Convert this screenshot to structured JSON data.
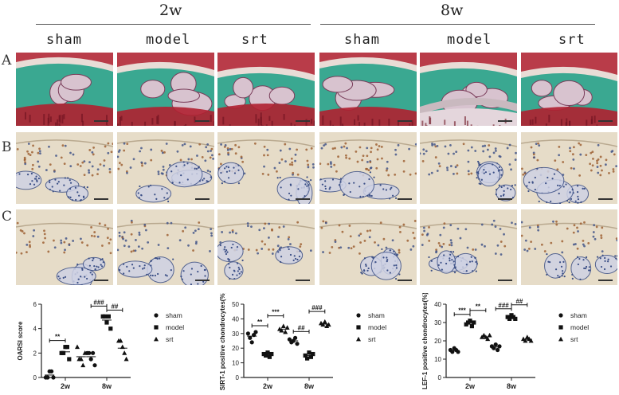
{
  "header": {
    "time_2w": "2w",
    "time_8w": "8w"
  },
  "groups": [
    "sham",
    "model",
    "srt",
    "sham",
    "model",
    "srt"
  ],
  "row_labels": [
    "A",
    "B",
    "C"
  ],
  "colors": {
    "safranin_red": "#b02030",
    "fast_green": "#3aa891",
    "ihc_bg": "#e6dcc8",
    "nucleus_blue": "#3b4f86",
    "brown_stain": "#9a5a2c"
  },
  "charts": [
    {
      "type": "scatter",
      "ylabel": "OARSI score",
      "categories": [
        "2w",
        "8w"
      ],
      "ylim": [
        0,
        6
      ],
      "yticks": [
        0,
        2,
        4,
        6
      ],
      "legend": [
        "sham",
        "model",
        "srt"
      ],
      "annotations": [
        {
          "text": "**",
          "pair": [
            "2w-sham",
            "2w-model"
          ]
        },
        {
          "text": "###",
          "pair": [
            "8w-sham",
            "8w-model"
          ]
        },
        {
          "text": "##",
          "pair": [
            "8w-model",
            "8w-srt"
          ]
        }
      ],
      "series": [
        {
          "name": "sham",
          "marker": "circle",
          "values": {
            "2w": [
              0,
              0,
              0.5,
              0.5,
              0
            ],
            "8w": [
              2,
              2,
              1.5,
              2,
              1
            ]
          }
        },
        {
          "name": "model",
          "marker": "square",
          "values": {
            "2w": [
              2,
              2,
              2.5,
              2.5,
              1.5
            ],
            "8w": [
              5,
              5,
              4.5,
              5,
              4
            ]
          }
        },
        {
          "name": "srt",
          "marker": "triangle",
          "values": {
            "2w": [
              2.5,
              1.5,
              1.5,
              1,
              2
            ],
            "8w": [
              3,
              3,
              2.5,
              2,
              1.5
            ]
          }
        }
      ]
    },
    {
      "type": "scatter",
      "ylabel": "SIRT-1 positive chondrocytes(%)",
      "categories": [
        "2w",
        "8w"
      ],
      "ylim": [
        0,
        50
      ],
      "yticks": [
        0,
        10,
        20,
        30,
        40,
        50
      ],
      "legend": [
        "sham",
        "model",
        "srt"
      ],
      "annotations": [
        {
          "text": "**",
          "pair": [
            "2w-sham",
            "2w-model"
          ]
        },
        {
          "text": "***",
          "pair": [
            "2w-model",
            "2w-srt"
          ]
        },
        {
          "text": "##",
          "pair": [
            "8w-sham",
            "8w-model"
          ]
        },
        {
          "text": "###",
          "pair": [
            "8w-model",
            "8w-srt"
          ]
        }
      ],
      "series": [
        {
          "name": "sham",
          "marker": "circle",
          "values": {
            "2w": [
              30,
              27,
              24,
              29,
              31
            ],
            "8w": [
              26,
              24,
              25,
              27,
              23
            ]
          }
        },
        {
          "name": "model",
          "marker": "square",
          "values": {
            "2w": [
              16,
              15,
              17,
              14,
              16
            ],
            "8w": [
              15,
              13,
              17,
              14,
              16
            ]
          }
        },
        {
          "name": "srt",
          "marker": "triangle",
          "values": {
            "2w": [
              33,
              32,
              35,
              31,
              34
            ],
            "8w": [
              37,
              36,
              38,
              35,
              36
            ]
          }
        }
      ]
    },
    {
      "type": "scatter",
      "ylabel": "LEF-1 positive chondrocytes(%)",
      "categories": [
        "2w",
        "8w"
      ],
      "ylim": [
        0,
        40
      ],
      "yticks": [
        0,
        10,
        20,
        30,
        40
      ],
      "legend": [
        "sham",
        "model",
        "srt"
      ],
      "annotations": [
        {
          "text": "***",
          "pair": [
            "2w-sham",
            "2w-model"
          ]
        },
        {
          "text": "**",
          "pair": [
            "2w-model",
            "2w-srt"
          ]
        },
        {
          "text": "###",
          "pair": [
            "8w-sham",
            "8w-model"
          ]
        },
        {
          "text": "##",
          "pair": [
            "8w-model",
            "8w-srt"
          ]
        }
      ],
      "series": [
        {
          "name": "sham",
          "marker": "circle",
          "values": {
            "2w": [
              15,
              14,
              16,
              15,
              14
            ],
            "8w": [
              17,
              16,
              18,
              15,
              17
            ]
          }
        },
        {
          "name": "model",
          "marker": "square",
          "values": {
            "2w": [
              29,
              30,
              31,
              28,
              30
            ],
            "8w": [
              33,
              32,
              34,
              33,
              32
            ]
          }
        },
        {
          "name": "srt",
          "marker": "triangle",
          "values": {
            "2w": [
              22,
              23,
              22,
              21,
              23
            ],
            "8w": [
              21,
              20,
              22,
              21,
              20
            ]
          }
        }
      ]
    }
  ]
}
